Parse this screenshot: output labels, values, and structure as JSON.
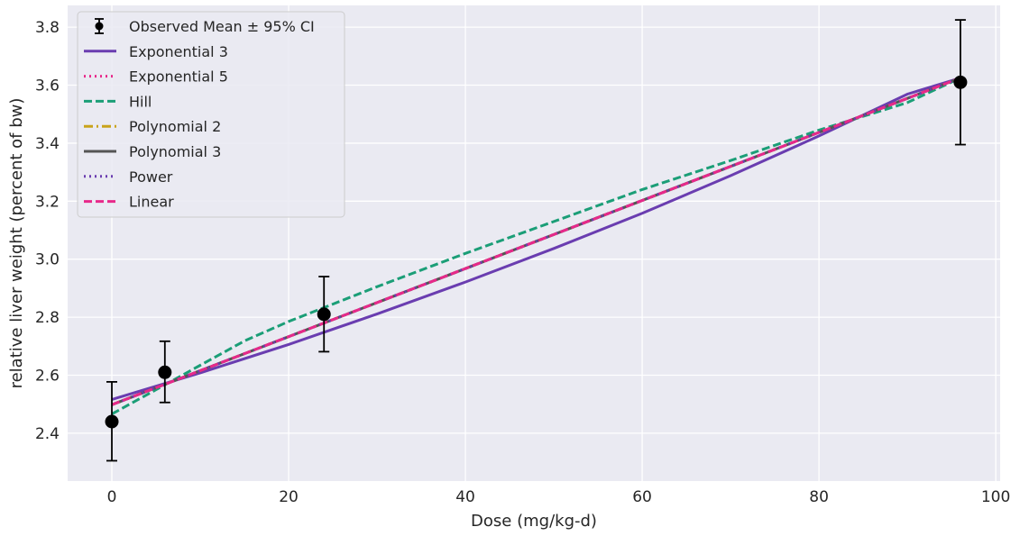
{
  "chart_data": {
    "type": "line",
    "title": "",
    "xlabel": "Dose (mg/kg-d)",
    "ylabel": "relative liver weight (percent of bw)",
    "xlim": [
      -5,
      100.5
    ],
    "ylim": [
      2.235,
      3.875
    ],
    "x_ticks": [
      0,
      20,
      40,
      60,
      80,
      100
    ],
    "y_ticks": [
      2.4,
      2.6,
      2.8,
      3.0,
      3.2,
      3.4,
      3.6,
      3.8
    ],
    "grid": true,
    "legend_position": "top-left",
    "observed": {
      "name": "Observed Mean ± 95% CI",
      "color": "#000000",
      "points": [
        {
          "x": 0,
          "y": 2.44,
          "lower": 2.305,
          "upper": 2.577
        },
        {
          "x": 6,
          "y": 2.61,
          "lower": 2.506,
          "upper": 2.717
        },
        {
          "x": 24,
          "y": 2.81,
          "lower": 2.681,
          "upper": 2.94
        },
        {
          "x": 96,
          "y": 3.61,
          "lower": 3.395,
          "upper": 3.825
        }
      ]
    },
    "series": [
      {
        "name": "Exponential 3",
        "color": "#6A3DB0",
        "style": "solid",
        "x": [
          0,
          10,
          20,
          30,
          40,
          50,
          60,
          70,
          80,
          90,
          96
        ],
        "y": [
          2.516,
          2.608,
          2.706,
          2.811,
          2.921,
          3.037,
          3.158,
          3.288,
          3.425,
          3.569,
          3.625
        ]
      },
      {
        "name": "Exponential 5",
        "color": "#E7298A",
        "style": "dotted",
        "x": [
          0,
          96
        ],
        "y": [
          2.498,
          3.625
        ]
      },
      {
        "name": "Hill",
        "color": "#1B9E77",
        "style": "dashed",
        "x": [
          0,
          5,
          10,
          15,
          20,
          25,
          30,
          40,
          50,
          60,
          70,
          80,
          90,
          96
        ],
        "y": [
          2.466,
          2.55,
          2.634,
          2.718,
          2.785,
          2.845,
          2.905,
          3.02,
          3.13,
          3.24,
          3.34,
          3.445,
          3.54,
          3.625
        ]
      },
      {
        "name": "Polynomial 2",
        "color": "#C9A31A",
        "style": "dashdot",
        "x": [
          0,
          96
        ],
        "y": [
          2.498,
          3.625
        ]
      },
      {
        "name": "Polynomial 3",
        "color": "#555555",
        "style": "solid",
        "x": [
          0,
          96
        ],
        "y": [
          2.498,
          3.625
        ]
      },
      {
        "name": "Power",
        "color": "#6A3DB0",
        "style": "dotted",
        "x": [
          0,
          96
        ],
        "y": [
          2.498,
          3.625
        ]
      },
      {
        "name": "Linear",
        "color": "#E7298A",
        "style": "dashed",
        "x": [
          0,
          96
        ],
        "y": [
          2.498,
          3.625
        ]
      }
    ]
  }
}
